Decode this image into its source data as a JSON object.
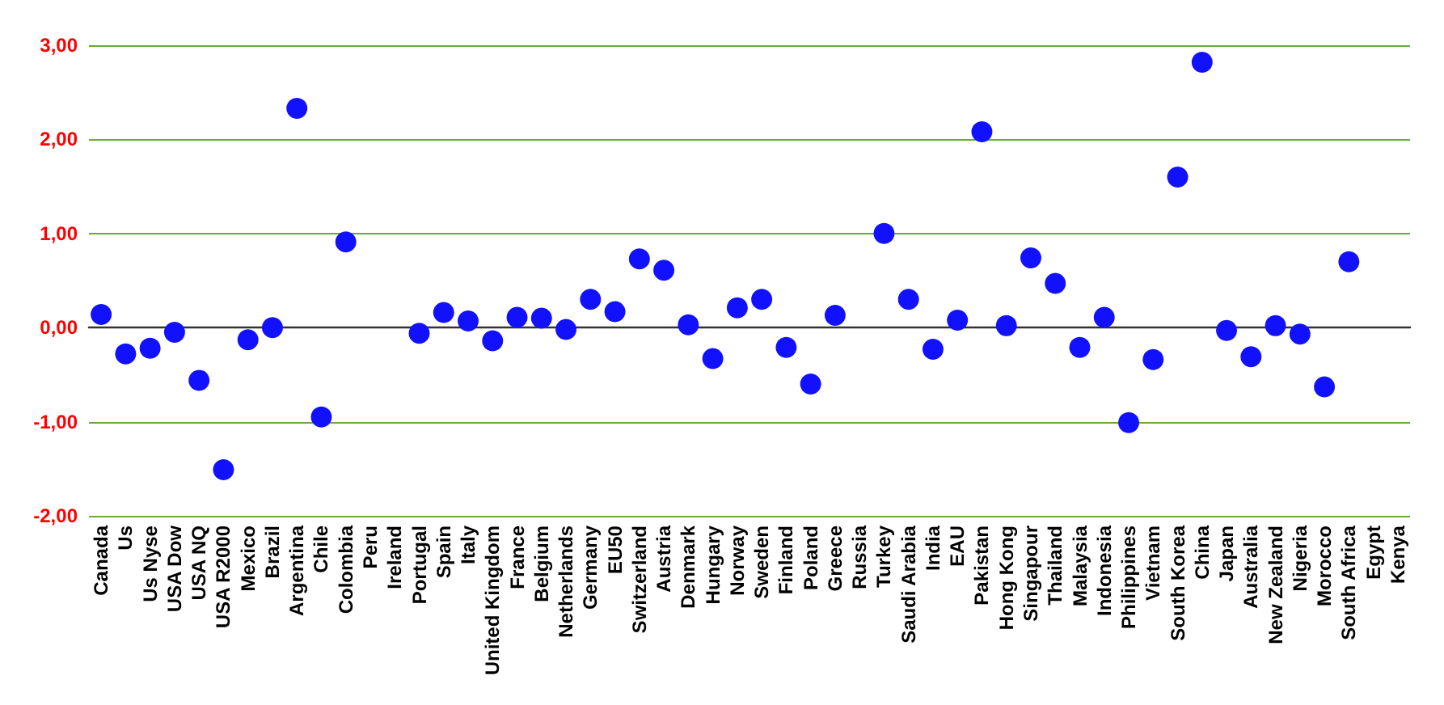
{
  "chart_data": {
    "type": "scatter",
    "categories": [
      "Canada",
      "Us",
      "Us Nyse",
      "USA Dow",
      "USA NQ",
      "USA R2000",
      "Mexico",
      "Brazil",
      "Argentina",
      "Chile",
      "Colombia",
      "Peru",
      "Ireland",
      "Portugal",
      "Spain",
      "Italy",
      "United Kingdom",
      "France",
      "Belgium",
      "Netherlands",
      "Germany",
      "EU50",
      "Switzerland",
      "Austria",
      "Denmark",
      "Hungary",
      "Norway",
      "Sweden",
      "Finland",
      "Poland",
      "Greece",
      "Russia",
      "Turkey",
      "Saudi Arabia",
      "India",
      "EAU",
      "Pakistan",
      "Hong Kong",
      "Singapour",
      "Thailand",
      "Malaysia",
      "Indonesia",
      "Philippines",
      "Vietnam",
      "South Korea",
      "China",
      "Japan",
      "Australia",
      "New Zealand",
      "Nigeria",
      "Morocco",
      "South Africa",
      "Egypt",
      "Kenya"
    ],
    "values": [
      0.14,
      -0.28,
      -0.22,
      -0.05,
      -0.56,
      -1.51,
      -0.13,
      0.0,
      2.33,
      -0.95,
      0.91,
      null,
      null,
      -0.06,
      0.16,
      0.07,
      -0.14,
      0.11,
      0.1,
      -0.02,
      0.3,
      0.17,
      0.73,
      0.61,
      0.03,
      -0.33,
      0.21,
      0.3,
      -0.21,
      -0.6,
      0.13,
      null,
      1.0,
      0.3,
      -0.23,
      0.08,
      2.08,
      0.02,
      0.74,
      0.47,
      -0.21,
      0.11,
      -1.01,
      -0.34,
      1.6,
      2.82,
      -0.03,
      -0.31,
      0.02,
      -0.07,
      -0.63,
      0.7,
      null,
      null
    ],
    "color": "#1111ff",
    "ylim": [
      -2,
      3
    ],
    "yticks": [
      {
        "value": -2,
        "label": "-2,00"
      },
      {
        "value": -1,
        "label": "-1,00"
      },
      {
        "value": 0,
        "label": "0,00"
      },
      {
        "value": 1,
        "label": "1,00"
      },
      {
        "value": 2,
        "label": "2,00"
      },
      {
        "value": 3,
        "label": "3,00"
      }
    ],
    "grid": "y",
    "marker": "circle"
  }
}
